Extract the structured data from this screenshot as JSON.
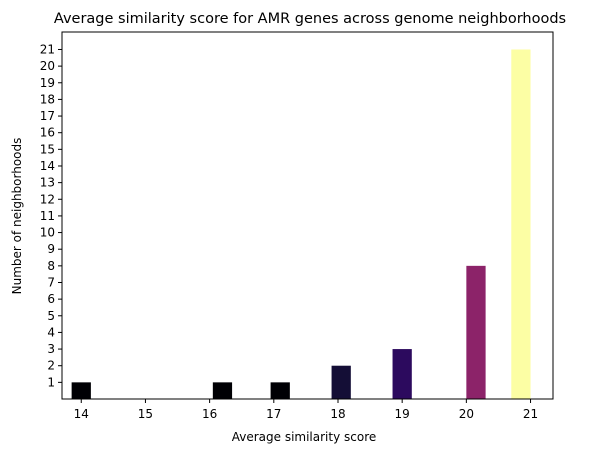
{
  "chart_data": {
    "type": "bar",
    "title": "Average similarity score for AMR genes across genome neighborhoods",
    "xlabel": "Average similarity score",
    "ylabel": "Number of neighborhoods",
    "x_ticks": [
      14,
      15,
      16,
      17,
      18,
      19,
      20,
      21
    ],
    "y_ticks": [
      1,
      2,
      3,
      4,
      5,
      6,
      7,
      8,
      9,
      10,
      11,
      12,
      13,
      14,
      15,
      16,
      17,
      18,
      19,
      20,
      21
    ],
    "xlim": [
      13.7,
      21.35
    ],
    "ylim": [
      0,
      22.05
    ],
    "grid": false,
    "bars": [
      {
        "x": 14.0,
        "value": 1,
        "color": "#000004"
      },
      {
        "x": 16.2,
        "value": 1,
        "color": "#000004"
      },
      {
        "x": 17.1,
        "value": 1,
        "color": "#000004"
      },
      {
        "x": 18.05,
        "value": 2,
        "color": "#140e36"
      },
      {
        "x": 19.0,
        "value": 3,
        "color": "#2c0a5e"
      },
      {
        "x": 20.15,
        "value": 8,
        "color": "#8c2369"
      },
      {
        "x": 20.85,
        "value": 21,
        "color": "#fcfea4"
      }
    ],
    "bar_width": 0.3
  }
}
